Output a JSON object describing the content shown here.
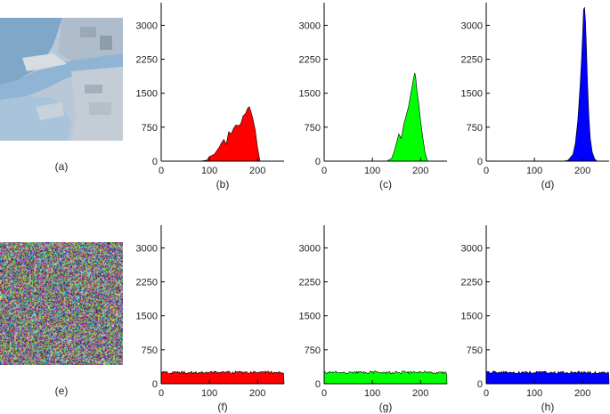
{
  "image_panels": [
    {
      "caption": "(a)",
      "kind": "aerial-photo"
    },
    {
      "caption": "(e)",
      "kind": "noise-image"
    }
  ],
  "chart_data": [
    {
      "type": "area",
      "caption": "(b)",
      "color": "#ff0000",
      "xlim": [
        0,
        255
      ],
      "ylim": [
        0,
        3500
      ],
      "xticks": [
        0,
        100,
        200
      ],
      "yticks": [
        0,
        750,
        1500,
        2250,
        3000
      ],
      "x": [
        80,
        95,
        100,
        110,
        120,
        125,
        130,
        135,
        140,
        145,
        150,
        155,
        160,
        165,
        170,
        175,
        180,
        183,
        186,
        190,
        195,
        200,
        205
      ],
      "values": [
        0,
        20,
        100,
        150,
        300,
        400,
        480,
        370,
        650,
        600,
        720,
        800,
        780,
        820,
        1000,
        1050,
        1180,
        1200,
        1100,
        950,
        700,
        300,
        0
      ]
    },
    {
      "type": "area",
      "caption": "(c)",
      "color": "#00ff00",
      "xlim": [
        0,
        255
      ],
      "ylim": [
        0,
        3500
      ],
      "xticks": [
        0,
        100,
        200
      ],
      "yticks": [
        0,
        750,
        1500,
        2250,
        3000
      ],
      "x": [
        130,
        140,
        145,
        150,
        155,
        160,
        165,
        170,
        175,
        180,
        185,
        188,
        190,
        193,
        196,
        200,
        205,
        210,
        215
      ],
      "values": [
        0,
        60,
        200,
        400,
        600,
        500,
        800,
        1000,
        1200,
        1500,
        1800,
        1950,
        1850,
        1500,
        1300,
        900,
        500,
        150,
        0
      ]
    },
    {
      "type": "area",
      "caption": "(d)",
      "color": "#0000ff",
      "xlim": [
        0,
        255
      ],
      "ylim": [
        0,
        3500
      ],
      "xticks": [
        0,
        100,
        200
      ],
      "yticks": [
        0,
        750,
        1500,
        2250,
        3000
      ],
      "x": [
        160,
        170,
        180,
        185,
        190,
        195,
        198,
        200,
        202,
        204,
        206,
        208,
        210,
        213,
        216,
        220,
        225,
        230
      ],
      "values": [
        0,
        20,
        150,
        400,
        900,
        1700,
        2300,
        2800,
        3350,
        3400,
        3100,
        2500,
        1800,
        1000,
        500,
        200,
        50,
        0
      ]
    },
    {
      "type": "area",
      "caption": "(f)",
      "color": "#ff0000",
      "xlim": [
        0,
        255
      ],
      "ylim": [
        0,
        3500
      ],
      "xticks": [
        0,
        100,
        200
      ],
      "yticks": [
        0,
        750,
        1500,
        2250,
        3000
      ],
      "x": [
        0,
        255
      ],
      "values": [
        250,
        250
      ]
    },
    {
      "type": "area",
      "caption": "(g)",
      "color": "#00ff00",
      "xlim": [
        0,
        255
      ],
      "ylim": [
        0,
        3500
      ],
      "xticks": [
        0,
        100,
        200
      ],
      "yticks": [
        0,
        750,
        1500,
        2250,
        3000
      ],
      "x": [
        0,
        255
      ],
      "values": [
        250,
        250
      ]
    },
    {
      "type": "area",
      "caption": "(h)",
      "color": "#0000ff",
      "xlim": [
        0,
        255
      ],
      "ylim": [
        0,
        3500
      ],
      "xticks": [
        0,
        100,
        200
      ],
      "yticks": [
        0,
        750,
        1500,
        2250,
        3000
      ],
      "x": [
        0,
        255
      ],
      "values": [
        250,
        250
      ]
    }
  ]
}
